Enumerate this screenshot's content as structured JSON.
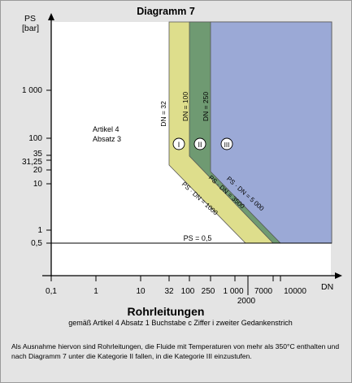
{
  "diagram": {
    "title": "Diagramm 7",
    "y_axis": {
      "label_line1": "PS",
      "label_line2": "[bar]",
      "ticks": [
        "1 000",
        "100",
        "35",
        "31,25",
        "20",
        "10",
        "1",
        "0,5"
      ]
    },
    "x_axis": {
      "label": "DN",
      "ticks": [
        "0,1",
        "1",
        "10",
        "32",
        "100",
        "250",
        "1 000",
        "2000",
        "7000",
        "10000"
      ]
    },
    "region_labels": {
      "article_line1": "Artikel 4",
      "article_line2": "Absatz 3",
      "cat1": "I",
      "cat2": "II",
      "cat3": "III"
    },
    "line_labels": {
      "dn32": "DN = 32",
      "dn100": "DN = 100",
      "dn250": "DN = 250",
      "ps_dn_1000": "PS · DN = 1000",
      "ps_dn_3500": "PS · DN = 3500",
      "ps_dn_5000": "PS · DN = 5 000",
      "ps_05": "PS = 0,5"
    },
    "colors": {
      "background": "#e4e4e4",
      "chart_area": "#ffffff",
      "category_1": "#dede8c",
      "category_2": "#6f9a72",
      "category_3": "#9ba9d6"
    }
  },
  "caption": {
    "heading": "Rohrleitungen",
    "subheading": "gemäß Artikel 4  Absatz 1 Buchstabe c Ziffer i zweiter Gedankenstrich"
  },
  "note": "Als Ausnahme hiervon sind Rohrleitungen, die Fluide mit Temperaturen von mehr als 350°C enthalten und nach Diagramm 7 unter die Kategorie II fallen, in die Kategorie III einzustufen."
}
